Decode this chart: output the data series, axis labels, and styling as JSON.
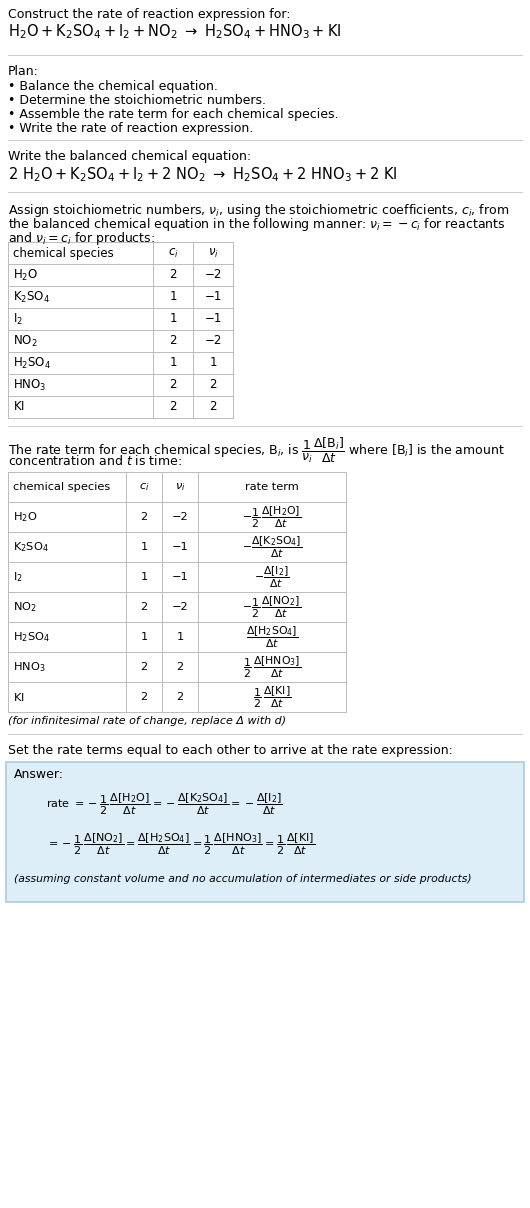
{
  "bg_color": "#ffffff",
  "text_color": "#000000",
  "table_border_color": "#bbbbbb",
  "answer_box_color": "#deeef8",
  "answer_border_color": "#aaccdd",
  "title_line1": "Construct the rate of reaction expression for:",
  "plan_header": "Plan:",
  "plan_items": [
    "• Balance the chemical equation.",
    "• Determine the stoichiometric numbers.",
    "• Assemble the rate term for each chemical species.",
    "• Write the rate of reaction expression."
  ],
  "section2_header": "Write the balanced chemical equation:",
  "section3_para1": "Assign stoichiometric numbers, ",
  "section3_para2": ", using the stoichiometric coefficients, ",
  "section3_para3": ", from",
  "section3_line2a": "the balanced chemical equation in the following manner: ",
  "section3_line2b": " for reactants",
  "section3_line3": "for products:",
  "table1_rows": [
    [
      "H_2O",
      "2",
      "−2"
    ],
    [
      "K_2SO_4",
      "1",
      "−1"
    ],
    [
      "I_2",
      "1",
      "−1"
    ],
    [
      "NO_2",
      "2",
      "−2"
    ],
    [
      "H_2SO_4",
      "1",
      "1"
    ],
    [
      "HNO_3",
      "2",
      "2"
    ],
    [
      "KI",
      "2",
      "2"
    ]
  ],
  "section4_line1a": "The rate term for each chemical species, B",
  "section4_line1b": ", is ",
  "section4_line1c": " where [B",
  "section4_line1d": "] is the amount",
  "section4_line2": "concentration and t is time:",
  "table2_rows": [
    [
      "H_2O",
      "2",
      "−2"
    ],
    [
      "K_2SO_4",
      "1",
      "−1"
    ],
    [
      "I_2",
      "1",
      "−1"
    ],
    [
      "NO_2",
      "2",
      "−2"
    ],
    [
      "H_2SO_4",
      "1",
      "1"
    ],
    [
      "HNO_3",
      "2",
      "2"
    ],
    [
      "KI",
      "2",
      "2"
    ]
  ],
  "footnote": "(for infinitesimal rate of change, replace Δ with d)",
  "section5_header": "Set the rate terms equal to each other to arrive at the rate expression:",
  "answer_label": "Answer:"
}
